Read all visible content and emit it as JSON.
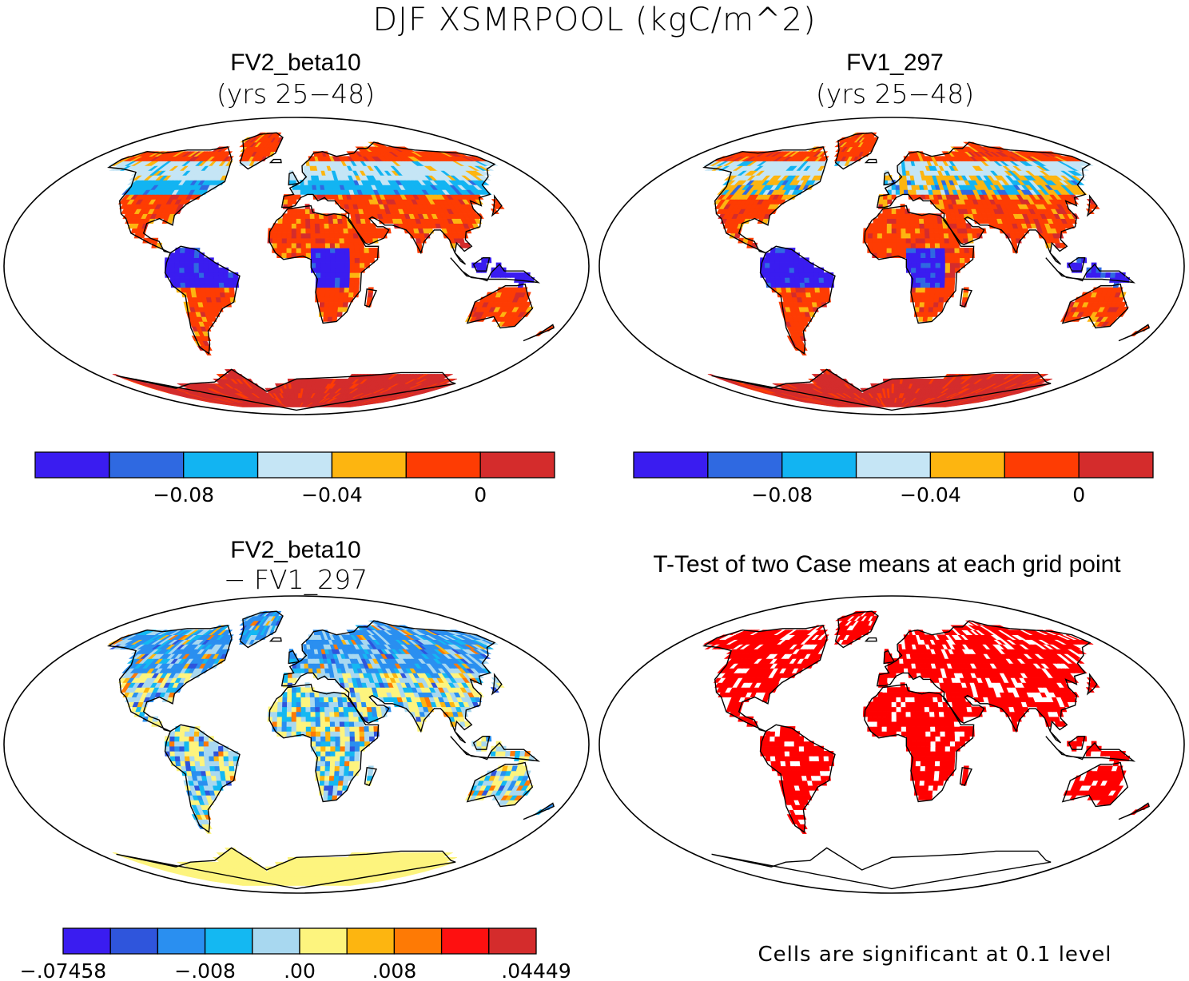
{
  "title": "DJF XSMRPOOL (kgC/m^2)",
  "colors": {
    "land_null": "#ffffff",
    "ocean": "#ffffff",
    "outline": "#000000",
    "significant": "#ff0000"
  },
  "panels": [
    {
      "title": "FV2_beta10",
      "subtitle": "(yrs 25−48)",
      "colorbar": {
        "colors": [
          "#3a1cf0",
          "#2f69e1",
          "#12b4f2",
          "#c5e5f5",
          "#fdb510",
          "#fe3c03",
          "#d42c2c"
        ],
        "tick_labels": [
          "−0.08",
          "−0.04",
          "0"
        ],
        "tick_boundaries": [
          2,
          4,
          6
        ]
      }
    },
    {
      "title": "FV1_297",
      "subtitle": "(yrs 25−48)",
      "colorbar": {
        "colors": [
          "#3a1cf0",
          "#2f69e1",
          "#12b4f2",
          "#c5e5f5",
          "#fdb510",
          "#fe3c03",
          "#d42c2c"
        ],
        "tick_labels": [
          "−0.08",
          "−0.04",
          "0"
        ],
        "tick_boundaries": [
          2,
          4,
          6
        ]
      }
    },
    {
      "title": "FV2_beta10",
      "subtitle": "− FV1_297",
      "colorbar": {
        "colors": [
          "#3a1cf0",
          "#2f55dc",
          "#2a8ff0",
          "#14b8f2",
          "#a8d8f0",
          "#fdf47e",
          "#fdb510",
          "#fe7a05",
          "#fe1010",
          "#d42c2c"
        ],
        "tick_labels": [
          "−.07458",
          "−.008",
          ".00",
          ".008",
          ".04449"
        ],
        "tick_boundaries": [
          0,
          3,
          5,
          7,
          10
        ]
      }
    },
    {
      "title": "T-Test of two Case means at each grid point",
      "note": "Cells are significant at 0.1 level"
    }
  ]
}
